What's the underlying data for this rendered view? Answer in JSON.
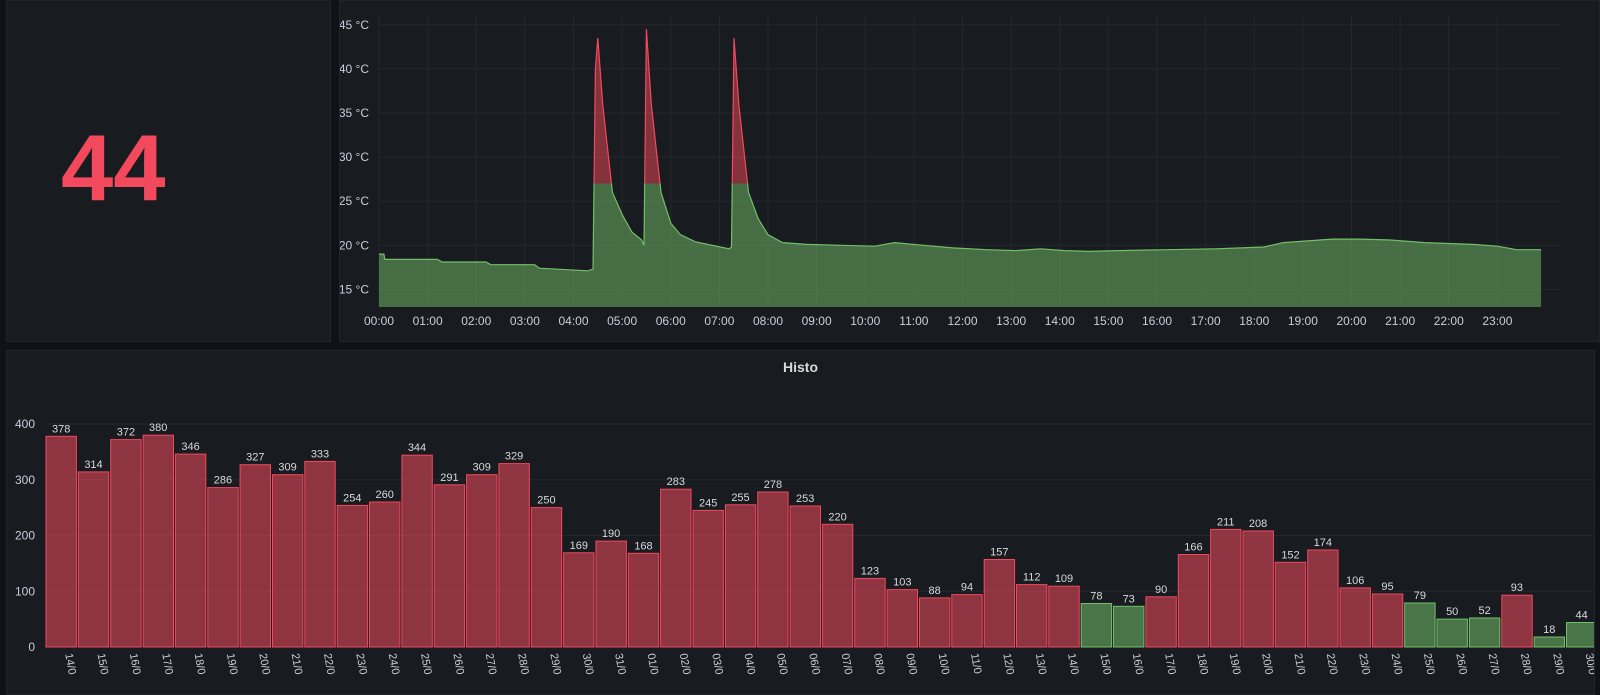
{
  "stat": {
    "value": "44"
  },
  "histogram": {
    "title": "Histo"
  },
  "chart_data": [
    {
      "type": "area",
      "ylim": [
        13,
        46
      ],
      "y_ticks": [
        "15 °C",
        "20 °C",
        "25 °C",
        "30 °C",
        "35 °C",
        "40 °C",
        "45 °C"
      ],
      "y_tick_values": [
        15,
        20,
        25,
        30,
        35,
        40,
        45
      ],
      "x_ticks": [
        "00:00",
        "01:00",
        "02:00",
        "03:00",
        "04:00",
        "05:00",
        "06:00",
        "07:00",
        "08:00",
        "09:00",
        "10:00",
        "11:00",
        "12:00",
        "13:00",
        "14:00",
        "15:00",
        "16:00",
        "17:00",
        "18:00",
        "19:00",
        "20:00",
        "21:00",
        "22:00",
        "23:00"
      ],
      "threshold": 27,
      "colors": {
        "normal": "#73bf69",
        "alert": "#f2495c"
      },
      "series": [
        {
          "x": [
            0,
            0.1,
            0.12,
            1.2,
            1.3,
            2.2,
            2.3,
            3.2,
            3.3,
            4.3,
            4.4,
            4.45,
            4.5,
            4.6,
            4.8,
            5.0,
            5.2,
            5.4,
            5.45,
            5.5,
            5.6,
            5.8,
            6.0,
            6.2,
            6.5,
            7.2,
            7.25,
            7.3,
            7.4,
            7.6,
            7.8,
            8.0,
            8.3,
            8.8,
            9.5,
            10.2,
            10.6,
            11.2,
            11.8,
            12.5,
            13.1,
            13.6,
            14.1,
            14.6,
            15.2,
            16.2,
            17.2,
            18.2,
            18.6,
            19.1,
            19.6,
            20.2,
            20.8,
            21.5,
            22.5,
            23.0,
            23.4,
            23.9
          ],
          "y": [
            19,
            19,
            18.4,
            18.4,
            18.1,
            18.1,
            17.8,
            17.8,
            17.4,
            17.1,
            17.3,
            40,
            43.5,
            36,
            26,
            23.5,
            21.5,
            20.6,
            20,
            44.5,
            36,
            26,
            22.5,
            21.2,
            20.4,
            19.6,
            19.8,
            43.5,
            36,
            26,
            23,
            21.2,
            20.3,
            20.1,
            20,
            19.9,
            20.3,
            20,
            19.7,
            19.5,
            19.4,
            19.6,
            19.4,
            19.3,
            19.4,
            19.5,
            19.6,
            19.8,
            20.3,
            20.5,
            20.7,
            20.7,
            20.6,
            20.3,
            20.1,
            19.9,
            19.5,
            19.5
          ]
        }
      ]
    },
    {
      "type": "bar",
      "ylim": [
        0,
        400
      ],
      "y_ticks": [
        "0",
        "100",
        "200",
        "300",
        "400"
      ],
      "threshold": 80,
      "colors": {
        "alert": "#f2495c",
        "normal": "#73bf69"
      },
      "categories": [
        "14/0",
        "15/0",
        "16/0",
        "17/0",
        "18/0",
        "19/0",
        "20/0",
        "21/0",
        "22/0",
        "23/0",
        "24/0",
        "25/0",
        "26/0",
        "27/0",
        "28/0",
        "29/0",
        "30/0",
        "31/0",
        "01/0",
        "02/0",
        "03/0",
        "04/0",
        "05/0",
        "06/0",
        "07/0",
        "08/0",
        "09/0",
        "10/0",
        "11/0",
        "12/0",
        "13/0",
        "14/0",
        "15/0",
        "16/0",
        "17/0",
        "18/0",
        "19/0",
        "20/0",
        "21/0",
        "22/0",
        "23/0",
        "24/0",
        "25/0",
        "26/0",
        "27/0",
        "28/0",
        "29/0",
        "30/0"
      ],
      "values": [
        378,
        314,
        372,
        380,
        346,
        286,
        327,
        309,
        333,
        254,
        260,
        344,
        291,
        309,
        329,
        250,
        169,
        190,
        168,
        283,
        245,
        255,
        278,
        253,
        220,
        123,
        103,
        88,
        94,
        157,
        112,
        109,
        78,
        73,
        90,
        166,
        211,
        208,
        152,
        174,
        106,
        95,
        79,
        50,
        52,
        93,
        18,
        44
      ]
    }
  ]
}
